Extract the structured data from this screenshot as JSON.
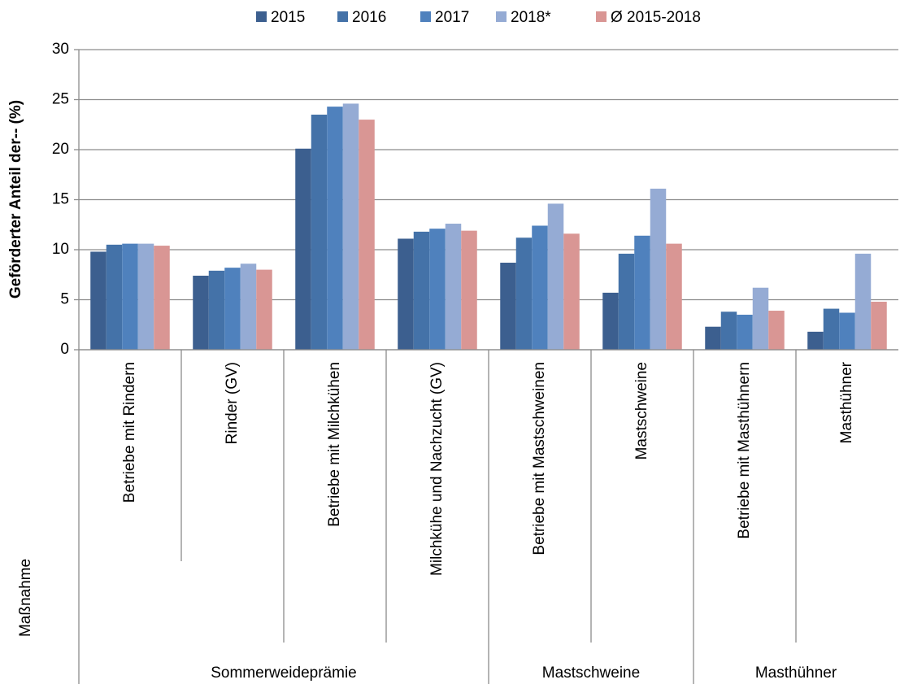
{
  "chart_data": {
    "type": "bar",
    "y_label": "Geförderter Anteil der-- (%)",
    "x_label": "Maßnahme",
    "groups": [
      {
        "name": "Sommerweideprämie",
        "categories": [
          "Betriebe mit Rindern",
          "Rinder (GV)",
          "Betriebe mit Milchkühen",
          "Milchkühe und Nachzucht (GV)"
        ]
      },
      {
        "name": "Mastschweine",
        "categories": [
          "Betriebe mit Mastschweinen",
          "Mastschweine"
        ]
      },
      {
        "name": "Masthühner",
        "categories": [
          "Betriebe mit Masthühnern",
          "Masthühner"
        ]
      }
    ],
    "series": [
      {
        "name": "2015",
        "color": "#3c5f8f",
        "values": [
          9.8,
          7.4,
          20.1,
          11.1,
          8.7,
          5.7,
          2.3,
          1.8
        ]
      },
      {
        "name": "2016",
        "color": "#4472a8",
        "values": [
          10.5,
          7.9,
          23.5,
          11.8,
          11.2,
          9.6,
          3.8,
          4.1
        ]
      },
      {
        "name": "2017",
        "color": "#4f81bd",
        "values": [
          10.6,
          8.2,
          24.3,
          12.1,
          12.4,
          11.4,
          3.5,
          3.7
        ]
      },
      {
        "name": "2018*",
        "color": "#95abd4",
        "values": [
          10.6,
          8.6,
          24.6,
          12.6,
          14.6,
          16.1,
          6.2,
          9.6
        ]
      },
      {
        "name": "Ø 2015-2018",
        "color": "#d99694",
        "values": [
          10.4,
          8.0,
          23.0,
          11.9,
          11.6,
          10.6,
          3.9,
          4.8
        ]
      }
    ],
    "ylim": [
      0,
      30
    ],
    "yticks": [
      0,
      5,
      10,
      15,
      20,
      25,
      30
    ],
    "grid": true,
    "legend": "top"
  }
}
